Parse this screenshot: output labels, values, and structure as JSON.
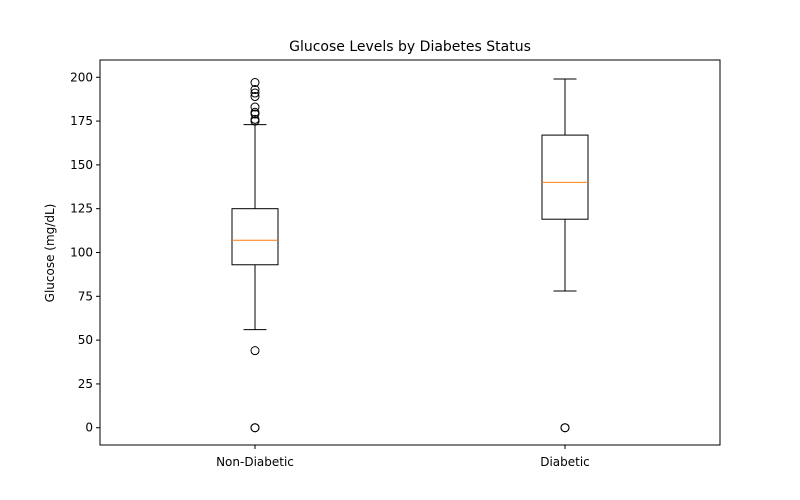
{
  "chart_data": {
    "type": "box",
    "title": "Glucose Levels by Diabetes Status",
    "xlabel": "",
    "ylabel": "Glucose (mg/dL)",
    "ylim": [
      -9.85,
      209.85
    ],
    "yticks": [
      0,
      25,
      50,
      75,
      100,
      125,
      150,
      175,
      200
    ],
    "categories": [
      "Non-Diabetic",
      "Diabetic"
    ],
    "boxes": [
      {
        "category": "Non-Diabetic",
        "whisker_low": 56,
        "q1": 93,
        "median": 107,
        "q3": 125,
        "whisker_high": 173,
        "outliers": [
          0,
          0,
          44,
          175,
          176,
          179,
          180,
          183,
          189,
          191,
          193,
          197
        ]
      },
      {
        "category": "Diabetic",
        "whisker_low": 78,
        "q1": 119,
        "median": 140,
        "q3": 167,
        "whisker_high": 199,
        "outliers": [
          0,
          0
        ]
      }
    ],
    "grid": false,
    "colors": {
      "box": "#000000",
      "median": "#ff7f0e",
      "flier": "#000000"
    }
  }
}
